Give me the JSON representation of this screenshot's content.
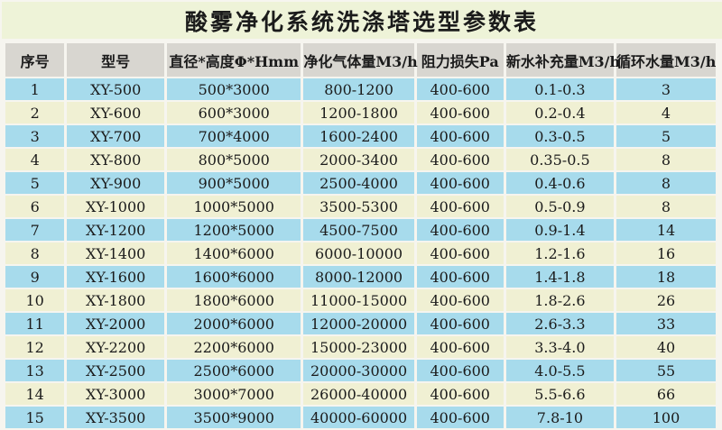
{
  "title": "酸雾净化系统洗涤塔选型参数表",
  "colors": {
    "row_blue": "#a7dbec",
    "row_cream": "#f0f0d3",
    "header_bg": "#d8d6d0",
    "title_bg": "#eef3d8",
    "frame_bg": "#f6f5ef",
    "text": "#1b1b1b"
  },
  "table": {
    "headers": [
      "序号",
      "型号",
      "直径*高度Φ*Hmm",
      "净化气体量M3/h",
      "阻力损失Pa",
      "新水补充量M3/h",
      "循环水量M3/h"
    ],
    "column_widths_pct": [
      8.5,
      14.0,
      19.3,
      15.9,
      12.5,
      15.5,
      14.3
    ],
    "rows": [
      [
        "1",
        "XY-500",
        "500*3000",
        "800-1200",
        "400-600",
        "0.1-0.3",
        "3"
      ],
      [
        "2",
        "XY-600",
        "600*3000",
        "1200-1800",
        "400-600",
        "0.2-0.4",
        "4"
      ],
      [
        "3",
        "XY-700",
        "700*4000",
        "1600-2400",
        "400-600",
        "0.3-0.5",
        "5"
      ],
      [
        "4",
        "XY-800",
        "800*5000",
        "2000-3400",
        "400-600",
        "0.35-0.5",
        "8"
      ],
      [
        "5",
        "XY-900",
        "900*5000",
        "2500-4000",
        "400-600",
        "0.4-0.6",
        "8"
      ],
      [
        "6",
        "XY-1000",
        "1000*5000",
        "3500-5300",
        "400-600",
        "0.5-0.9",
        "8"
      ],
      [
        "7",
        "XY-1200",
        "1200*5000",
        "4500-7500",
        "400-600",
        "0.9-1.4",
        "14"
      ],
      [
        "8",
        "XY-1400",
        "1400*6000",
        "6000-10000",
        "400-600",
        "1.2-1.6",
        "16"
      ],
      [
        "9",
        "XY-1600",
        "1600*6000",
        "8000-12000",
        "400-600",
        "1.4-1.8",
        "18"
      ],
      [
        "10",
        "XY-1800",
        "1800*6000",
        "11000-15000",
        "400-600",
        "1.8-2.6",
        "26"
      ],
      [
        "11",
        "XY-2000",
        "2000*6000",
        "12000-20000",
        "400-600",
        "2.6-3.3",
        "33"
      ],
      [
        "12",
        "XY-2200",
        "2200*6000",
        "15000-23000",
        "400-600",
        "3.3-4.0",
        "40"
      ],
      [
        "13",
        "XY-2500",
        "2500*6000",
        "20000-30000",
        "400-600",
        "4.0-5.5",
        "55"
      ],
      [
        "14",
        "XY-3000",
        "3000*7000",
        "26000-40000",
        "400-600",
        "5.5-6.6",
        "66"
      ],
      [
        "15",
        "XY-3500",
        "3500*9000",
        "40000-60000",
        "400-600",
        "7.8-10",
        "100"
      ]
    ]
  }
}
